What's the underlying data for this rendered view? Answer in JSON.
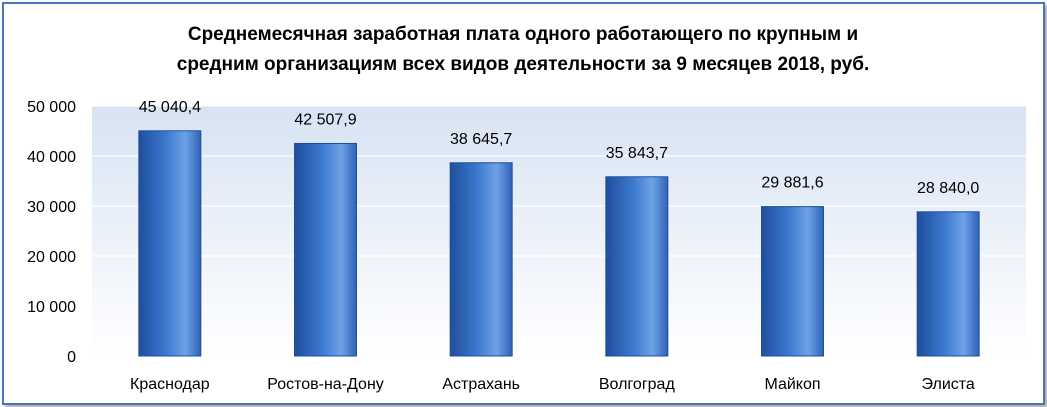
{
  "chart_data": {
    "type": "bar",
    "title": "Среднемесячная заработная плата одного работающего по крупным и средним организациям всех видов деятельности за 9 месяцев 2018, руб.",
    "title_lines": [
      "Среднемесячная заработная плата одного работающего по крупным и",
      "средним организациям всех видов деятельности за 9 месяцев 2018, руб."
    ],
    "categories": [
      "Краснодар",
      "Ростов-на-Дону",
      "Астрахань",
      "Волгоград",
      "Майкоп",
      "Элиста"
    ],
    "values": [
      45040.4,
      42507.9,
      38645.7,
      35843.7,
      29881.6,
      28840.0
    ],
    "data_labels": [
      "45 040,4",
      "42 507,9",
      "38 645,7",
      "35 843,7",
      "29 881,6",
      "28 840,0"
    ],
    "y_ticks": [
      0,
      10000,
      20000,
      30000,
      40000,
      50000
    ],
    "y_tick_labels": [
      "0",
      "10 000",
      "20 000",
      "30 000",
      "40 000",
      "50 000"
    ],
    "ylim": [
      0,
      50000
    ],
    "xlabel": "",
    "ylabel": "",
    "grid": true,
    "legend": "none",
    "colors": {
      "bar_dark": "#1f4e9c",
      "bar_mid": "#3d7ad0",
      "bar_light": "#6ea2e6",
      "plot_bg_top": "#d7e3f3",
      "plot_bg_bottom": "#ffffff",
      "gridline": "#ffffff",
      "frame_border": "#4a76b8"
    }
  }
}
